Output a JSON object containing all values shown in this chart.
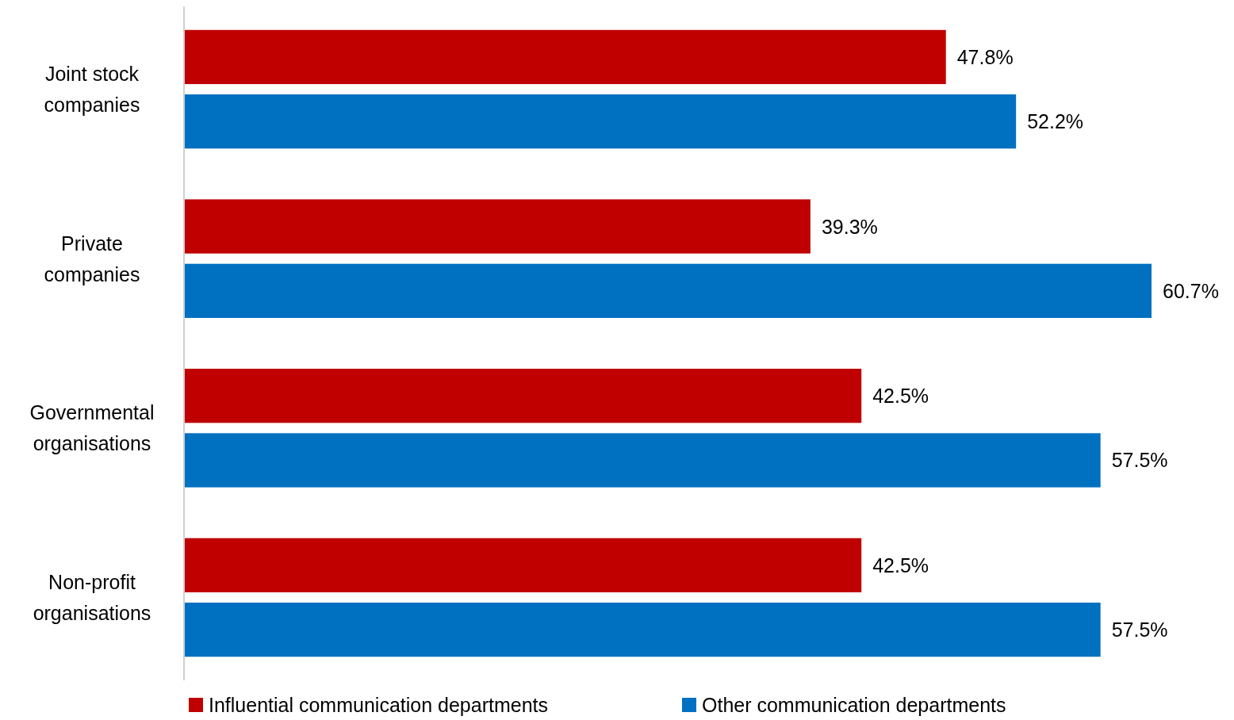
{
  "chart_data": {
    "type": "bar",
    "orientation": "horizontal",
    "categories": [
      "Joint stock companies",
      "Private companies",
      "Governmental organisations",
      "Non-profit organisations"
    ],
    "series": [
      {
        "name": "Influential communication departments",
        "color": "#c00000",
        "values": [
          47.8,
          39.3,
          42.5,
          42.5
        ],
        "value_labels": [
          "47.8%",
          "39.3%",
          "42.5%",
          "42.5%"
        ]
      },
      {
        "name": "Other communication departments",
        "color": "#0070c0",
        "values": [
          52.2,
          60.7,
          57.5,
          57.5
        ],
        "value_labels": [
          "52.2%",
          "60.7%",
          "57.5%",
          "57.5%"
        ]
      }
    ],
    "legend": "bottom",
    "grid": false
  }
}
